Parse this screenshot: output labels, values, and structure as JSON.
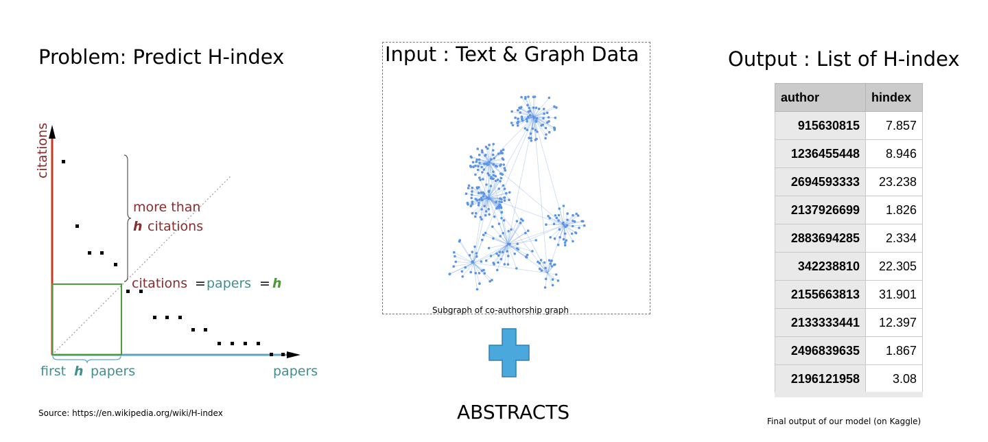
{
  "left": {
    "title": "Problem: Predict H-index",
    "source": "Source: https://en.wikipedia.org/wiki/H-index",
    "plot": {
      "y_axis_label": "citations",
      "x_axis_label": "papers",
      "annotation_more_than": "more than",
      "annotation_h": "h",
      "annotation_citations": "citations",
      "eq_citations": "citations",
      "eq_equals1": "=",
      "eq_papers": "papers",
      "eq_equals2": "=",
      "eq_h": "h",
      "first_h_papers_first": "first",
      "first_h_papers_h": "h",
      "first_h_papers_papers": "papers",
      "colors": {
        "citations": "#c23b22",
        "papers": "#5ba3c9",
        "h_box": "#4c9a3a",
        "text_red": "#8b2b2b",
        "text_teal": "#3f8f8f"
      }
    }
  },
  "middle": {
    "title": "Input : Text & Graph Data",
    "graph_caption": "Subgraph of co-authorship graph",
    "plus_icon": "plus-icon",
    "plus_color": "#4aa8dc",
    "abstracts": "ABSTRACTS",
    "graph_color": "#5b93e6"
  },
  "right": {
    "title": "Output : List of H-index",
    "caption": "Final output of our model (on Kaggle)",
    "table": {
      "headers": [
        "author",
        "hindex"
      ],
      "rows": [
        [
          "915630815",
          "7.857"
        ],
        [
          "1236455448",
          "8.946"
        ],
        [
          "2694593333",
          "23.238"
        ],
        [
          "2137926699",
          "1.826"
        ],
        [
          "2883694285",
          "2.334"
        ],
        [
          "342238810",
          "22.305"
        ],
        [
          "2155663813",
          "31.901"
        ],
        [
          "2133333441",
          "12.397"
        ],
        [
          "2496839635",
          "1.867"
        ],
        [
          "2196121958",
          "3.08"
        ]
      ]
    }
  }
}
